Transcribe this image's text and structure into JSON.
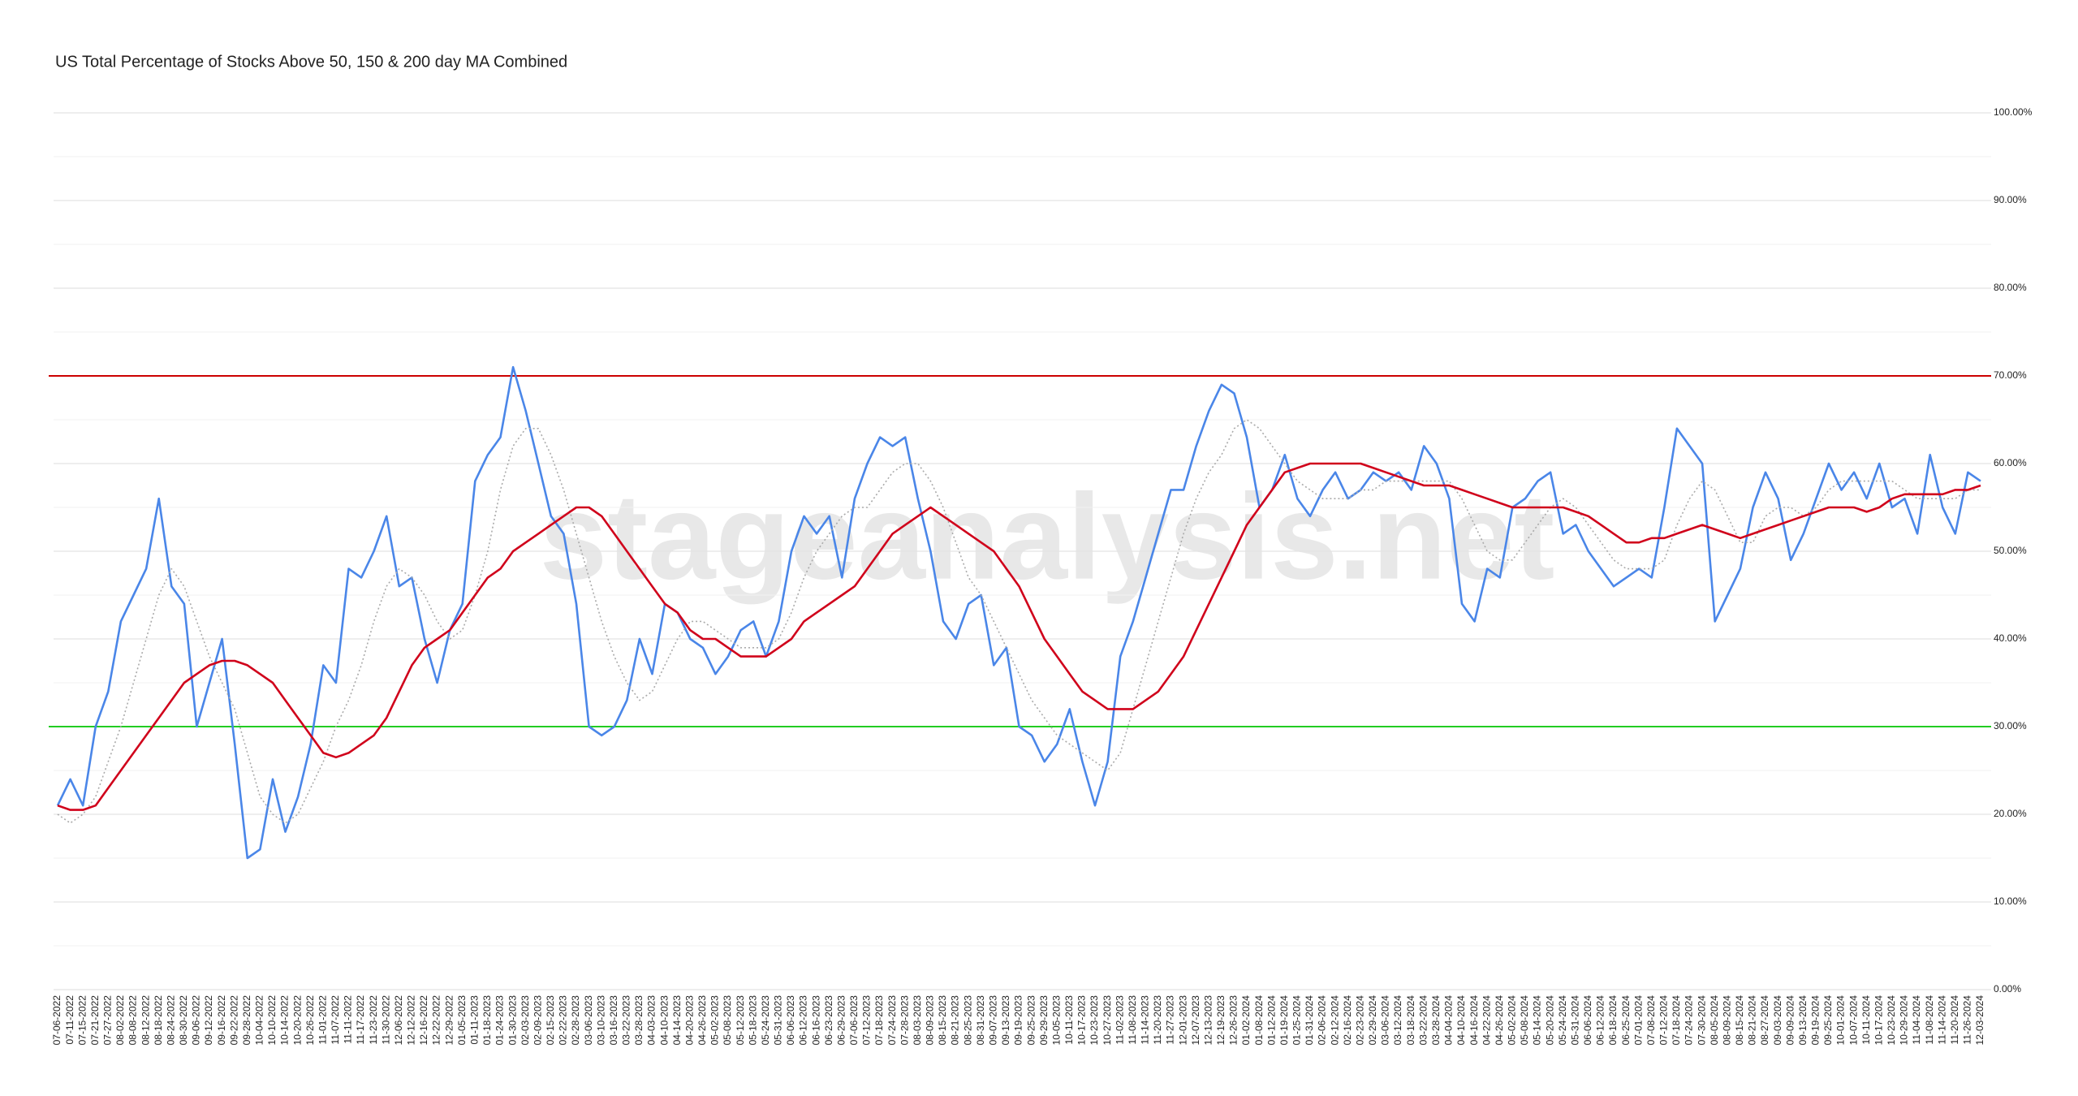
{
  "chart_data": {
    "type": "line",
    "title": "US Total Percentage of Stocks Above 50, 150 & 200 day MA Combined",
    "watermark": "stageanalysis.net",
    "categories": [
      "07-06-2022",
      "07-11-2022",
      "07-15-2022",
      "07-21-2022",
      "07-27-2022",
      "08-02-2022",
      "08-08-2022",
      "08-12-2022",
      "08-18-2022",
      "08-24-2022",
      "08-30-2022",
      "09-06-2022",
      "09-12-2022",
      "09-16-2022",
      "09-22-2022",
      "09-28-2022",
      "10-04-2022",
      "10-10-2022",
      "10-14-2022",
      "10-20-2022",
      "10-26-2022",
      "11-01-2022",
      "11-07-2022",
      "11-11-2022",
      "11-17-2022",
      "11-23-2022",
      "11-30-2022",
      "12-06-2022",
      "12-12-2022",
      "12-16-2022",
      "12-22-2022",
      "12-29-2022",
      "01-05-2023",
      "01-11-2023",
      "01-18-2023",
      "01-24-2023",
      "01-30-2023",
      "02-03-2023",
      "02-09-2023",
      "02-15-2023",
      "02-22-2023",
      "02-28-2023",
      "03-06-2023",
      "03-10-2023",
      "03-16-2023",
      "03-22-2023",
      "03-28-2023",
      "04-03-2023",
      "04-10-2023",
      "04-14-2023",
      "04-20-2023",
      "04-26-2023",
      "05-02-2023",
      "05-08-2023",
      "05-12-2023",
      "05-18-2023",
      "05-24-2023",
      "05-31-2023",
      "06-06-2023",
      "06-12-2023",
      "06-16-2023",
      "06-23-2023",
      "06-29-2023",
      "07-06-2023",
      "07-12-2023",
      "07-18-2023",
      "07-24-2023",
      "07-28-2023",
      "08-03-2023",
      "08-09-2023",
      "08-15-2023",
      "08-21-2023",
      "08-25-2023",
      "08-31-2023",
      "09-07-2023",
      "09-13-2023",
      "09-19-2023",
      "09-25-2023",
      "09-29-2023",
      "10-05-2023",
      "10-11-2023",
      "10-17-2023",
      "10-23-2023",
      "10-27-2023",
      "11-02-2023",
      "11-08-2023",
      "11-14-2023",
      "11-20-2023",
      "11-27-2023",
      "12-01-2023",
      "12-07-2023",
      "12-13-2023",
      "12-19-2023",
      "12-26-2023",
      "01-02-2024",
      "01-08-2024",
      "01-12-2024",
      "01-19-2024",
      "01-25-2024",
      "01-31-2024",
      "02-06-2024",
      "02-12-2024",
      "02-16-2024",
      "02-23-2024",
      "02-29-2024",
      "03-06-2024",
      "03-12-2024",
      "03-18-2024",
      "03-22-2024",
      "03-28-2024",
      "04-04-2024",
      "04-10-2024",
      "04-16-2024",
      "04-22-2024",
      "04-26-2024",
      "05-02-2024",
      "05-08-2024",
      "05-14-2024",
      "05-20-2024",
      "05-24-2024",
      "05-31-2024",
      "06-06-2024",
      "06-12-2024",
      "06-18-2024",
      "06-25-2024",
      "07-01-2024",
      "07-08-2024",
      "07-12-2024",
      "07-18-2024",
      "07-24-2024",
      "07-30-2024",
      "08-05-2024",
      "08-09-2024",
      "08-15-2024",
      "08-21-2024",
      "08-27-2024",
      "09-03-2024",
      "09-09-2024",
      "09-13-2024",
      "09-19-2024",
      "09-25-2024",
      "10-01-2024",
      "10-07-2024",
      "10-11-2024",
      "10-17-2024",
      "10-23-2024",
      "10-29-2024",
      "11-04-2024",
      "11-08-2024",
      "11-14-2024",
      "11-20-2024",
      "11-26-2024",
      "12-03-2024"
    ],
    "series": [
      {
        "color": "#4a86e8",
        "style": "solid",
        "values": [
          21,
          24,
          21,
          30,
          34,
          42,
          45,
          48,
          56,
          46,
          44,
          30,
          35,
          40,
          28,
          15,
          16,
          24,
          18,
          22,
          28,
          37,
          35,
          48,
          47,
          50,
          54,
          46,
          47,
          40,
          35,
          41,
          44,
          58,
          61,
          63,
          71,
          66,
          60,
          54,
          52,
          44,
          30,
          29,
          30,
          33,
          40,
          36,
          44,
          43,
          40,
          39,
          36,
          38,
          41,
          42,
          38,
          42,
          50,
          54,
          52,
          54,
          47,
          56,
          60,
          63,
          62,
          63,
          56,
          50,
          42,
          40,
          44,
          45,
          37,
          39,
          30,
          29,
          26,
          28,
          32,
          26,
          21,
          26,
          38,
          42,
          47,
          52,
          57,
          57,
          62,
          66,
          69,
          68,
          63,
          55,
          57,
          61,
          56,
          54,
          57,
          59,
          56,
          57,
          59,
          58,
          59,
          57,
          62,
          60,
          56,
          44,
          42,
          48,
          47,
          55,
          56,
          58,
          59,
          52,
          53,
          50,
          48,
          46,
          47,
          48,
          47,
          55,
          64,
          62,
          60,
          42,
          45,
          48,
          55,
          59,
          56,
          49,
          52,
          56,
          60,
          57,
          59,
          56,
          60,
          55,
          56,
          52,
          61,
          55,
          52,
          59,
          58
        ]
      },
      {
        "color": "#aaaaaa",
        "style": "dotted",
        "values": [
          20,
          19,
          20,
          22,
          26,
          30,
          35,
          40,
          45,
          48,
          46,
          42,
          38,
          35,
          32,
          27,
          22,
          20,
          19,
          20,
          23,
          26,
          30,
          33,
          37,
          42,
          46,
          48,
          47,
          45,
          42,
          40,
          41,
          45,
          50,
          57,
          62,
          64,
          64,
          61,
          57,
          52,
          47,
          42,
          38,
          35,
          33,
          34,
          37,
          40,
          42,
          42,
          41,
          40,
          39,
          39,
          39,
          40,
          43,
          47,
          50,
          52,
          54,
          55,
          55,
          57,
          59,
          60,
          60,
          58,
          55,
          51,
          47,
          45,
          42,
          39,
          36,
          33,
          31,
          29,
          28,
          27,
          26,
          25,
          27,
          32,
          37,
          42,
          47,
          52,
          56,
          59,
          61,
          64,
          65,
          64,
          62,
          60,
          58,
          57,
          56,
          56,
          56,
          57,
          57,
          58,
          58,
          58,
          58,
          58,
          58,
          56,
          53,
          50,
          49,
          49,
          51,
          53,
          55,
          56,
          55,
          53,
          51,
          49,
          48,
          48,
          48,
          49,
          53,
          56,
          58,
          57,
          54,
          51,
          51,
          54,
          55,
          55,
          54,
          55,
          57,
          58,
          58,
          58,
          58,
          58,
          57,
          56,
          56,
          56,
          56,
          57,
          57
        ]
      },
      {
        "color": "#d0021b",
        "style": "solid",
        "values": [
          21,
          20.5,
          20.5,
          21,
          23,
          25,
          27,
          29,
          31,
          33,
          35,
          36,
          37,
          37.5,
          37.5,
          37,
          36,
          35,
          33,
          31,
          29,
          27,
          26.5,
          27,
          28,
          29,
          31,
          34,
          37,
          39,
          40,
          41,
          43,
          45,
          47,
          48,
          50,
          51,
          52,
          53,
          54,
          55,
          55,
          54,
          52,
          50,
          48,
          46,
          44,
          43,
          41,
          40,
          40,
          39,
          38,
          38,
          38,
          39,
          40,
          42,
          43,
          44,
          45,
          46,
          48,
          50,
          52,
          53,
          54,
          55,
          54,
          53,
          52,
          51,
          50,
          48,
          46,
          43,
          40,
          38,
          36,
          34,
          33,
          32,
          32,
          32,
          33,
          34,
          36,
          38,
          41,
          44,
          47,
          50,
          53,
          55,
          57,
          59,
          59.5,
          60,
          60,
          60,
          60,
          60,
          59.5,
          59,
          58.5,
          58,
          57.5,
          57.5,
          57.5,
          57,
          56.5,
          56,
          55.5,
          55,
          55,
          55,
          55,
          55,
          54.5,
          54,
          53,
          52,
          51,
          51,
          51.5,
          51.5,
          52,
          52.5,
          53,
          52.5,
          52,
          51.5,
          52,
          52.5,
          53,
          53.5,
          54,
          54.5,
          55,
          55,
          55,
          54.5,
          55,
          56,
          56.5,
          56.5,
          56.5,
          56.5,
          57,
          57,
          57.5
        ]
      }
    ],
    "reference_lines": [
      {
        "value": 70,
        "color": "#cc0000"
      },
      {
        "value": 30,
        "color": "#22cc22"
      }
    ],
    "ylim": [
      0,
      100
    ],
    "yticks": [
      {
        "value": 0,
        "label": "0.00%"
      },
      {
        "value": 10,
        "label": "10.00%"
      },
      {
        "value": 20,
        "label": "20.00%"
      },
      {
        "value": 30,
        "label": "30.00%"
      },
      {
        "value": 40,
        "label": "40.00%"
      },
      {
        "value": 50,
        "label": "50.00%"
      },
      {
        "value": 60,
        "label": "60.00%"
      },
      {
        "value": 70,
        "label": "70.00%"
      },
      {
        "value": 80,
        "label": "80.00%"
      },
      {
        "value": 90,
        "label": "90.00%"
      },
      {
        "value": 100,
        "label": "100.00%"
      }
    ],
    "minor_yticks": [
      5,
      15,
      25,
      35,
      45,
      55,
      65,
      75,
      85,
      95
    ],
    "grid": true
  }
}
